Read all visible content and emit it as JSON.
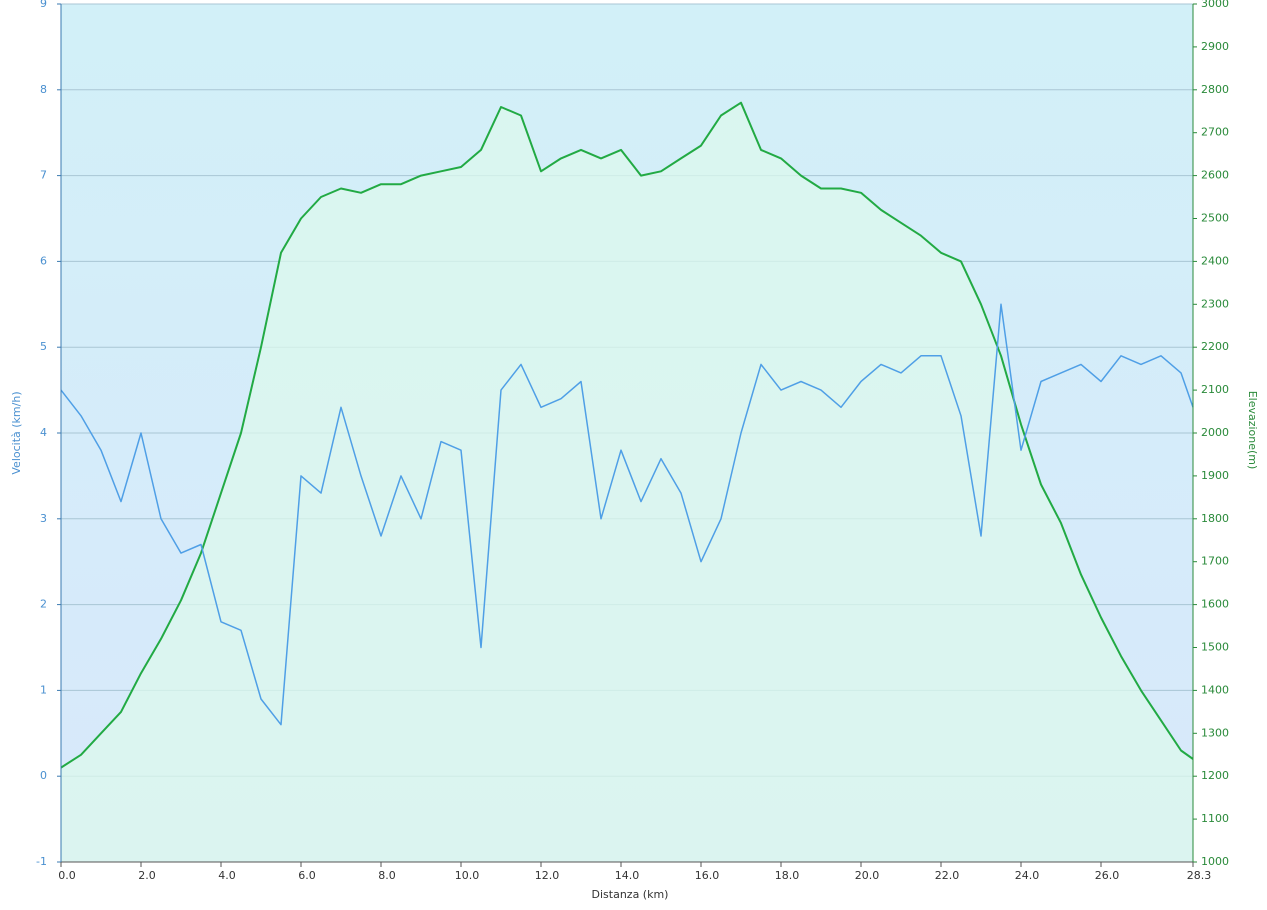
{
  "chart_data": {
    "type": "line",
    "x_label": "Distanza  (km)",
    "y_label": "Velocità (km/h)",
    "y2_label": "Elevazione(m)",
    "x": [
      0,
      0.5,
      1,
      1.5,
      2,
      2.5,
      3,
      3.5,
      4,
      4.5,
      5,
      5.5,
      6,
      6.5,
      7,
      7.5,
      8,
      8.5,
      9,
      9.5,
      10,
      10.5,
      11,
      11.5,
      12,
      12.5,
      13,
      13.5,
      14,
      14.5,
      15,
      15.5,
      16,
      16.5,
      17,
      17.5,
      18,
      18.5,
      19,
      19.5,
      20,
      20.5,
      21,
      21.5,
      22,
      22.5,
      23,
      23.5,
      24,
      24.5,
      25,
      25.5,
      26,
      26.5,
      27,
      27.5,
      28,
      28.3
    ],
    "series": [
      {
        "name": "Velocità",
        "color": "#4f9fe6",
        "axis": "y",
        "values": [
          4.5,
          4.2,
          3.8,
          3.2,
          4.0,
          3.0,
          2.6,
          2.7,
          1.8,
          1.7,
          0.9,
          0.6,
          3.5,
          3.3,
          4.3,
          3.5,
          2.8,
          3.5,
          3.0,
          3.9,
          3.8,
          1.5,
          4.5,
          4.8,
          4.3,
          4.4,
          4.6,
          3.0,
          3.8,
          3.2,
          3.7,
          3.3,
          2.5,
          3.0,
          4.0,
          4.8,
          4.5,
          4.6,
          4.5,
          4.3,
          4.6,
          4.8,
          4.7,
          4.9,
          4.9,
          4.2,
          2.8,
          5.5,
          3.8,
          4.6,
          4.7,
          4.8,
          4.6,
          4.9,
          4.8,
          4.9,
          4.7,
          4.3
        ]
      },
      {
        "name": "Elevazione",
        "color": "#22aa44",
        "axis": "y2",
        "values": [
          1220,
          1250,
          1300,
          1350,
          1440,
          1520,
          1610,
          1720,
          1860,
          2000,
          2200,
          2420,
          2500,
          2550,
          2570,
          2560,
          2580,
          2580,
          2600,
          2610,
          2620,
          2660,
          2760,
          2740,
          2610,
          2640,
          2660,
          2640,
          2660,
          2600,
          2610,
          2640,
          2670,
          2740,
          2770,
          2660,
          2640,
          2600,
          2570,
          2570,
          2560,
          2520,
          2490,
          2460,
          2420,
          2400,
          2300,
          2180,
          2020,
          1880,
          1790,
          1670,
          1570,
          1480,
          1400,
          1330,
          1260,
          1240
        ]
      }
    ],
    "xlim": [
      0,
      28.3
    ],
    "xticks": [
      {
        "value": 0,
        "label": "0.0"
      },
      {
        "value": 2,
        "label": "2.0"
      },
      {
        "value": 4,
        "label": "4.0"
      },
      {
        "value": 6,
        "label": "6.0"
      },
      {
        "value": 8,
        "label": "8.0"
      },
      {
        "value": 10,
        "label": "10.0"
      },
      {
        "value": 12,
        "label": "12.0"
      },
      {
        "value": 14,
        "label": "14.0"
      },
      {
        "value": 16,
        "label": "16.0"
      },
      {
        "value": 18,
        "label": "18.0"
      },
      {
        "value": 20,
        "label": "20.0"
      },
      {
        "value": 22,
        "label": "22.0"
      },
      {
        "value": 24,
        "label": "24.0"
      },
      {
        "value": 26,
        "label": "26.0"
      },
      28.3
    ],
    "ylim": [
      -1,
      9
    ],
    "yticks": [
      -1,
      0,
      1,
      2,
      3,
      4,
      5,
      6,
      7,
      8,
      9
    ],
    "y2lim": [
      1000,
      3000
    ],
    "y2ticks": [
      1000,
      1100,
      1200,
      1300,
      1400,
      1500,
      1600,
      1700,
      1800,
      1900,
      2000,
      2100,
      2200,
      2300,
      2400,
      2500,
      2600,
      2700,
      2800,
      2900,
      3000
    ],
    "grid": true
  }
}
